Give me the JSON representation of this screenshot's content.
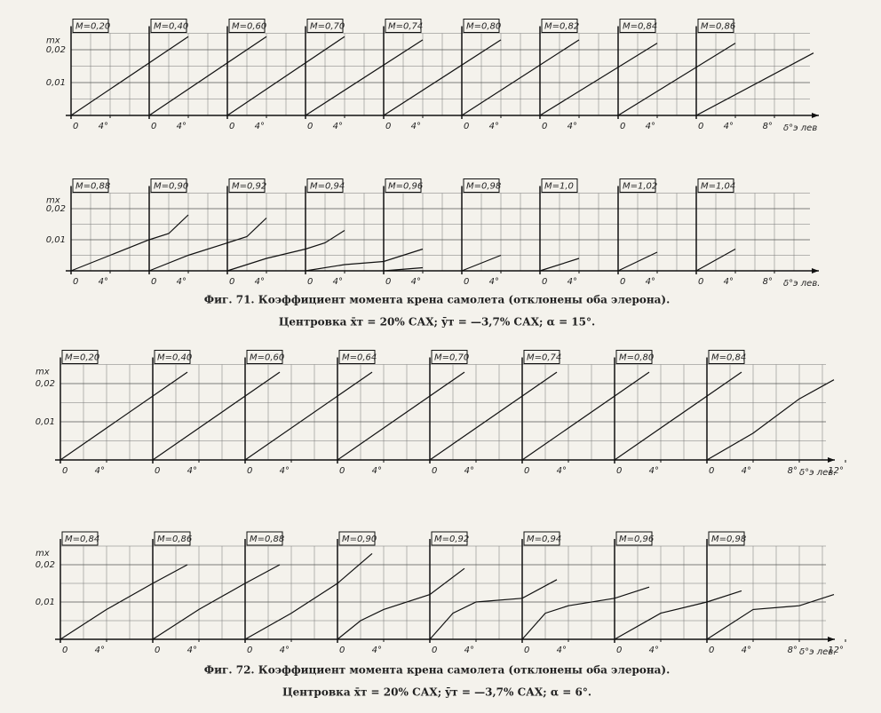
{
  "chart_data": [
    {
      "type": "line",
      "y_label": "mx",
      "x_label": "δ°э лев",
      "ylim": [
        0,
        0.025
      ],
      "xlim": [
        0,
        12
      ],
      "yticks": [
        {
          "value": 0.01,
          "label": "0,01"
        },
        {
          "value": 0.02,
          "label": "0,02"
        }
      ],
      "xticks": [
        {
          "value": 0,
          "label": "0"
        },
        {
          "value": 4,
          "label": "4°"
        },
        {
          "value": 8,
          "label": "8°"
        }
      ],
      "series": [
        {
          "name": "M=0,20",
          "x": [
            0,
            12
          ],
          "values": [
            0,
            0.024
          ]
        },
        {
          "name": "M=0,40",
          "x": [
            0,
            12
          ],
          "values": [
            0,
            0.024
          ]
        },
        {
          "name": "M=0,60",
          "x": [
            0,
            12
          ],
          "values": [
            0,
            0.024
          ]
        },
        {
          "name": "M=0,70",
          "x": [
            0,
            12
          ],
          "values": [
            0,
            0.023
          ]
        },
        {
          "name": "M=0,74",
          "x": [
            0,
            12
          ],
          "values": [
            0,
            0.023
          ]
        },
        {
          "name": "M=0,80",
          "x": [
            0,
            12
          ],
          "values": [
            0,
            0.023
          ]
        },
        {
          "name": "M=0,82",
          "x": [
            0,
            12
          ],
          "values": [
            0,
            0.022
          ]
        },
        {
          "name": "M=0,84",
          "x": [
            0,
            12
          ],
          "values": [
            0,
            0.022
          ]
        },
        {
          "name": "M=0,86",
          "x": [
            0,
            12
          ],
          "values": [
            0,
            0.019
          ]
        }
      ]
    },
    {
      "type": "line",
      "y_label": "mx",
      "x_label": "δ°э лев.",
      "ylim": [
        0,
        0.025
      ],
      "xlim": [
        0,
        12
      ],
      "yticks": [
        {
          "value": 0.01,
          "label": "0,01"
        },
        {
          "value": 0.02,
          "label": "0,02"
        }
      ],
      "xticks": [
        {
          "value": 0,
          "label": "0"
        },
        {
          "value": 4,
          "label": "4°"
        },
        {
          "value": 8,
          "label": "8°"
        }
      ],
      "series": [
        {
          "name": "M=0,88",
          "x": [
            0,
            4,
            8,
            10,
            12
          ],
          "values": [
            0,
            0.005,
            0.01,
            0.012,
            0.018
          ]
        },
        {
          "name": "M=0,90",
          "x": [
            0,
            4,
            8,
            10,
            12
          ],
          "values": [
            0,
            0.005,
            0.009,
            0.011,
            0.017
          ]
        },
        {
          "name": "M=0,92",
          "x": [
            0,
            4,
            8,
            10,
            12
          ],
          "values": [
            0,
            0.004,
            0.007,
            0.009,
            0.013
          ]
        },
        {
          "name": "M=0,94",
          "x": [
            0,
            4,
            8,
            12
          ],
          "values": [
            0,
            0.002,
            0.003,
            0.007
          ]
        },
        {
          "name": "M=0,96",
          "x": [
            0,
            4
          ],
          "values": [
            0,
            0.001
          ]
        },
        {
          "name": "M=0,98",
          "x": [
            0,
            4
          ],
          "values": [
            0,
            0.005
          ]
        },
        {
          "name": "M=1,0",
          "x": [
            0,
            4
          ],
          "values": [
            0,
            0.004
          ]
        },
        {
          "name": "M=1,02",
          "x": [
            0,
            4
          ],
          "values": [
            0,
            0.006
          ]
        },
        {
          "name": "M=1,04",
          "x": [
            0,
            4
          ],
          "values": [
            0,
            0.007
          ]
        }
      ],
      "caption": [
        "Фиг. 71. Коэффициент момента крена самолета (отклонены оба элерона).",
        "Центровка x̄т = 20% САХ; ȳт = —3,7% САХ; α = 15°."
      ]
    },
    {
      "type": "line",
      "y_label": "mx",
      "x_label": "δ°э лев.",
      "ylim": [
        0,
        0.025
      ],
      "xlim": [
        0,
        12
      ],
      "yticks": [
        {
          "value": 0.01,
          "label": "0,01"
        },
        {
          "value": 0.02,
          "label": "0,02"
        }
      ],
      "xticks": [
        {
          "value": 0,
          "label": "0"
        },
        {
          "value": 4,
          "label": "4°"
        },
        {
          "value": 8,
          "label": "8°"
        },
        {
          "value": 12,
          "label": "12°"
        }
      ],
      "series": [
        {
          "name": "M=0,20",
          "x": [
            0,
            11
          ],
          "values": [
            0,
            0.023
          ]
        },
        {
          "name": "M=0,40",
          "x": [
            0,
            11
          ],
          "values": [
            0,
            0.023
          ]
        },
        {
          "name": "M=0,60",
          "x": [
            0,
            11
          ],
          "values": [
            0,
            0.023
          ]
        },
        {
          "name": "M=0,64",
          "x": [
            0,
            11
          ],
          "values": [
            0,
            0.023
          ]
        },
        {
          "name": "M=0,70",
          "x": [
            0,
            11
          ],
          "values": [
            0,
            0.023
          ]
        },
        {
          "name": "M=0,74",
          "x": [
            0,
            11
          ],
          "values": [
            0,
            0.023
          ]
        },
        {
          "name": "M=0,80",
          "x": [
            0,
            11
          ],
          "values": [
            0,
            0.023
          ]
        },
        {
          "name": "M=0,84",
          "x": [
            0,
            4,
            8,
            11
          ],
          "values": [
            0,
            0.007,
            0.016,
            0.021
          ]
        }
      ]
    },
    {
      "type": "line",
      "y_label": "mx",
      "x_label": "δ°э лев.",
      "ylim": [
        0,
        0.025
      ],
      "xlim": [
        0,
        12
      ],
      "yticks": [
        {
          "value": 0.01,
          "label": "0,01"
        },
        {
          "value": 0.02,
          "label": "0,02"
        }
      ],
      "xticks": [
        {
          "value": 0,
          "label": "0"
        },
        {
          "value": 4,
          "label": "4°"
        },
        {
          "value": 8,
          "label": "8°"
        },
        {
          "value": 12,
          "label": "12°"
        }
      ],
      "series": [
        {
          "name": "M=0,84",
          "x": [
            0,
            4,
            8,
            11
          ],
          "values": [
            0,
            0.008,
            0.015,
            0.02
          ]
        },
        {
          "name": "M=0,86",
          "x": [
            0,
            4,
            8,
            11
          ],
          "values": [
            0,
            0.008,
            0.015,
            0.02
          ]
        },
        {
          "name": "M=0,88",
          "x": [
            0,
            4,
            8,
            11
          ],
          "values": [
            0,
            0.007,
            0.015,
            0.023
          ]
        },
        {
          "name": "M=0,90",
          "x": [
            0,
            2,
            4,
            8,
            11
          ],
          "values": [
            0,
            0.005,
            0.008,
            0.012,
            0.019
          ]
        },
        {
          "name": "M=0,92",
          "x": [
            0,
            2,
            4,
            8,
            11
          ],
          "values": [
            0,
            0.007,
            0.01,
            0.011,
            0.016
          ]
        },
        {
          "name": "M=0,94",
          "x": [
            0,
            2,
            4,
            8,
            11
          ],
          "values": [
            0,
            0.007,
            0.009,
            0.011,
            0.014
          ]
        },
        {
          "name": "M=0,96",
          "x": [
            0,
            4,
            8,
            11
          ],
          "values": [
            0,
            0.007,
            0.01,
            0.013
          ]
        },
        {
          "name": "M=0,98",
          "x": [
            0,
            4,
            8,
            11
          ],
          "values": [
            0,
            0.008,
            0.009,
            0.012
          ]
        }
      ],
      "caption": [
        "Фиг. 72. Коэффициент момента крена самолета (отклонены оба элерона).",
        "Центровка x̄т = 20% САХ; ȳт = —3,7% САХ; α = 6°."
      ]
    }
  ]
}
